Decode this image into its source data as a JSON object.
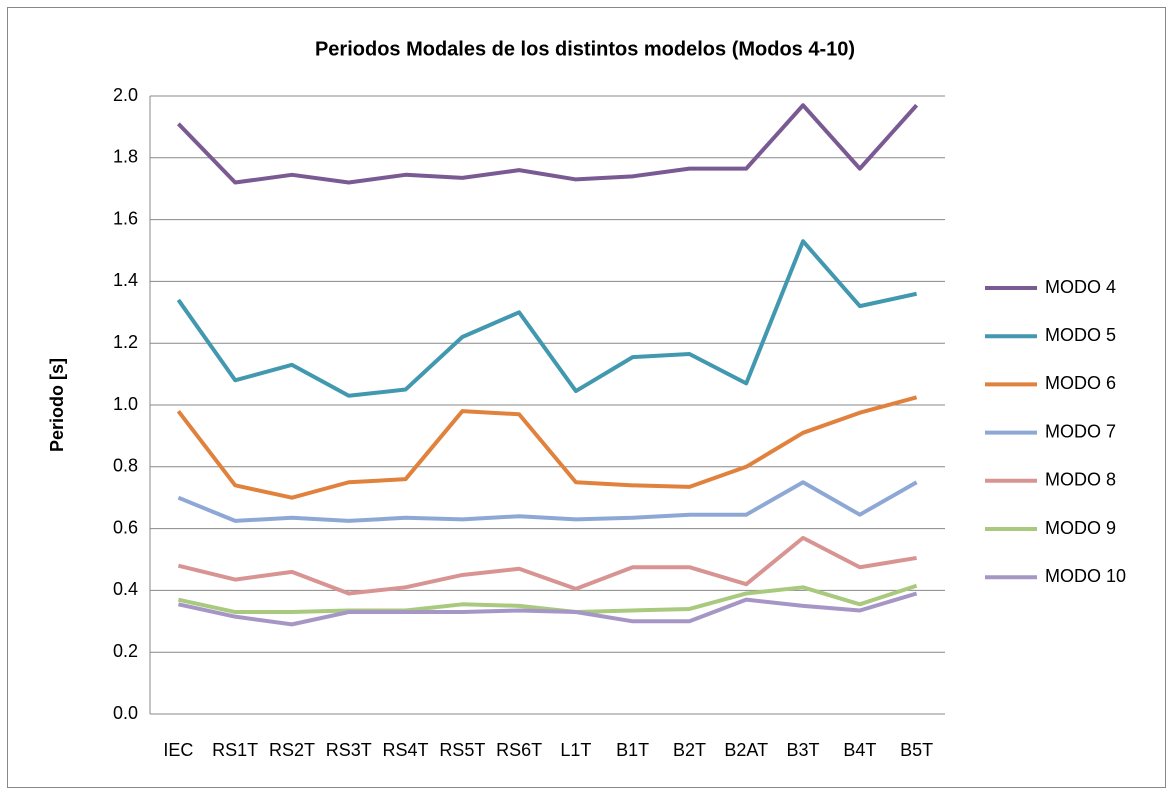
{
  "chart_data": {
    "type": "line",
    "title": "Periodos Modales de los distintos modelos (Modos 4-10)",
    "y_label": "Periodo [s]",
    "categories": [
      "IEC",
      "RS1T",
      "RS2T",
      "RS3T",
      "RS4T",
      "RS5T",
      "RS6T",
      "L1T",
      "B1T",
      "B2T",
      "B2AT",
      "B3T",
      "B4T",
      "B5T"
    ],
    "series": [
      {
        "name": "MODO 4",
        "color": "#7a5a92",
        "values": [
          1.91,
          1.72,
          1.745,
          1.72,
          1.745,
          1.735,
          1.76,
          1.73,
          1.74,
          1.765,
          1.765,
          1.97,
          1.765,
          1.97
        ]
      },
      {
        "name": "MODO 5",
        "color": "#4198af",
        "values": [
          1.34,
          1.08,
          1.13,
          1.03,
          1.05,
          1.22,
          1.3,
          1.045,
          1.155,
          1.165,
          1.07,
          1.53,
          1.32,
          1.36
        ]
      },
      {
        "name": "MODO 6",
        "color": "#e0823d",
        "values": [
          0.98,
          0.74,
          0.7,
          0.75,
          0.76,
          0.98,
          0.97,
          0.75,
          0.74,
          0.735,
          0.8,
          0.91,
          0.975,
          1.025
        ]
      },
      {
        "name": "MODO 7",
        "color": "#8ea8d6",
        "values": [
          0.7,
          0.625,
          0.635,
          0.625,
          0.635,
          0.63,
          0.64,
          0.63,
          0.635,
          0.645,
          0.645,
          0.75,
          0.645,
          0.75
        ]
      },
      {
        "name": "MODO 8",
        "color": "#d89493",
        "values": [
          0.48,
          0.435,
          0.46,
          0.39,
          0.41,
          0.45,
          0.47,
          0.405,
          0.475,
          0.475,
          0.42,
          0.57,
          0.475,
          0.505
        ]
      },
      {
        "name": "MODO 9",
        "color": "#a9c97f",
        "values": [
          0.37,
          0.33,
          0.33,
          0.335,
          0.335,
          0.355,
          0.35,
          0.33,
          0.335,
          0.34,
          0.39,
          0.41,
          0.355,
          0.415
        ]
      },
      {
        "name": "MODO 10",
        "color": "#a596c6",
        "values": [
          0.355,
          0.315,
          0.29,
          0.33,
          0.33,
          0.33,
          0.335,
          0.33,
          0.3,
          0.3,
          0.37,
          0.35,
          0.335,
          0.39
        ]
      }
    ],
    "ylim": [
      0,
      2
    ],
    "yticks": [
      {
        "value": 0,
        "label": "0.0"
      },
      0.2,
      0.4,
      0.6,
      0.8,
      {
        "value": 1,
        "label": "1.0"
      },
      1.2,
      1.4,
      1.6,
      1.8,
      {
        "value": 2,
        "label": "2.0"
      }
    ],
    "grid": true,
    "legend": "right"
  }
}
